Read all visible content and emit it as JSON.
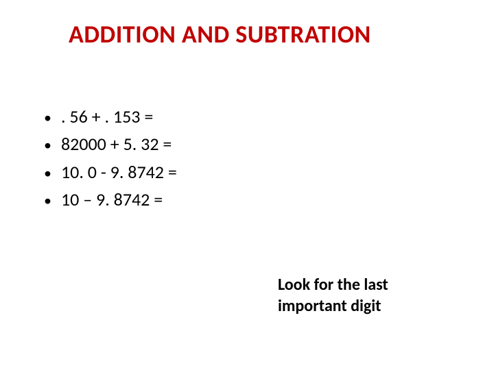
{
  "slide": {
    "title": "ADDITION AND SUBTRATION",
    "bullets": [
      {
        "text": ". 56 + . 153 ="
      },
      {
        "text": " 82000 + 5. 32 ="
      },
      {
        "text": " 10. 0 - 9. 8742 ="
      },
      {
        "text": " 10 – 9. 8742 ="
      }
    ],
    "footer_line1": "Look for the last",
    "footer_line2": "important digit"
  },
  "styling": {
    "type": "infographic",
    "background_color": "#ffffff",
    "title_color": "#c00000",
    "title_fontsize": 36,
    "title_fontweight": "bold",
    "body_color": "#000000",
    "body_fontsize": 26,
    "footer_fontsize": 24,
    "footer_fontweight": "bold",
    "bullet_marker": "•",
    "font_family": "Calibri"
  }
}
